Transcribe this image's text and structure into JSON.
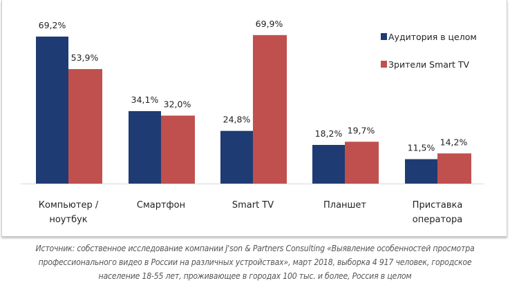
{
  "chart_data": {
    "type": "bar",
    "categories": [
      "Компьютер / ноутбук",
      "Смартфон",
      "Smart TV",
      "Планшет",
      "Приставка оператора"
    ],
    "category_lines": [
      [
        "Компьютер /",
        "ноутбук"
      ],
      [
        "Смартфон"
      ],
      [
        "Smart TV"
      ],
      [
        "Планшет"
      ],
      [
        "Приставка",
        "оператора"
      ]
    ],
    "series": [
      {
        "name": "Аудитория в целом",
        "color": "#1f3b73",
        "values": [
          69.2,
          34.1,
          24.8,
          18.2,
          11.5
        ],
        "labels": [
          "69,2%",
          "34,1%",
          "24,8%",
          "18,2%",
          "11,5%"
        ]
      },
      {
        "name": "Зрители Smart TV",
        "color": "#c0504d",
        "values": [
          53.9,
          32.0,
          69.9,
          19.7,
          14.2
        ],
        "labels": [
          "53,9%",
          "32,0%",
          "69,9%",
          "19,7%",
          "14,2%"
        ]
      }
    ],
    "ylim": [
      0,
      75
    ],
    "grid": false,
    "legend": "right"
  },
  "source": [
    "Источник: собственное исследование компании J'son & Partners Consulting «Выявление особенностей просмотра",
    "профессионального видео в России на различных устройствах», март 2018, выборка 4 917 человек, городское",
    "население 18-55 лет, проживающее в городах 100 тыс. и более, Россия в целом"
  ]
}
